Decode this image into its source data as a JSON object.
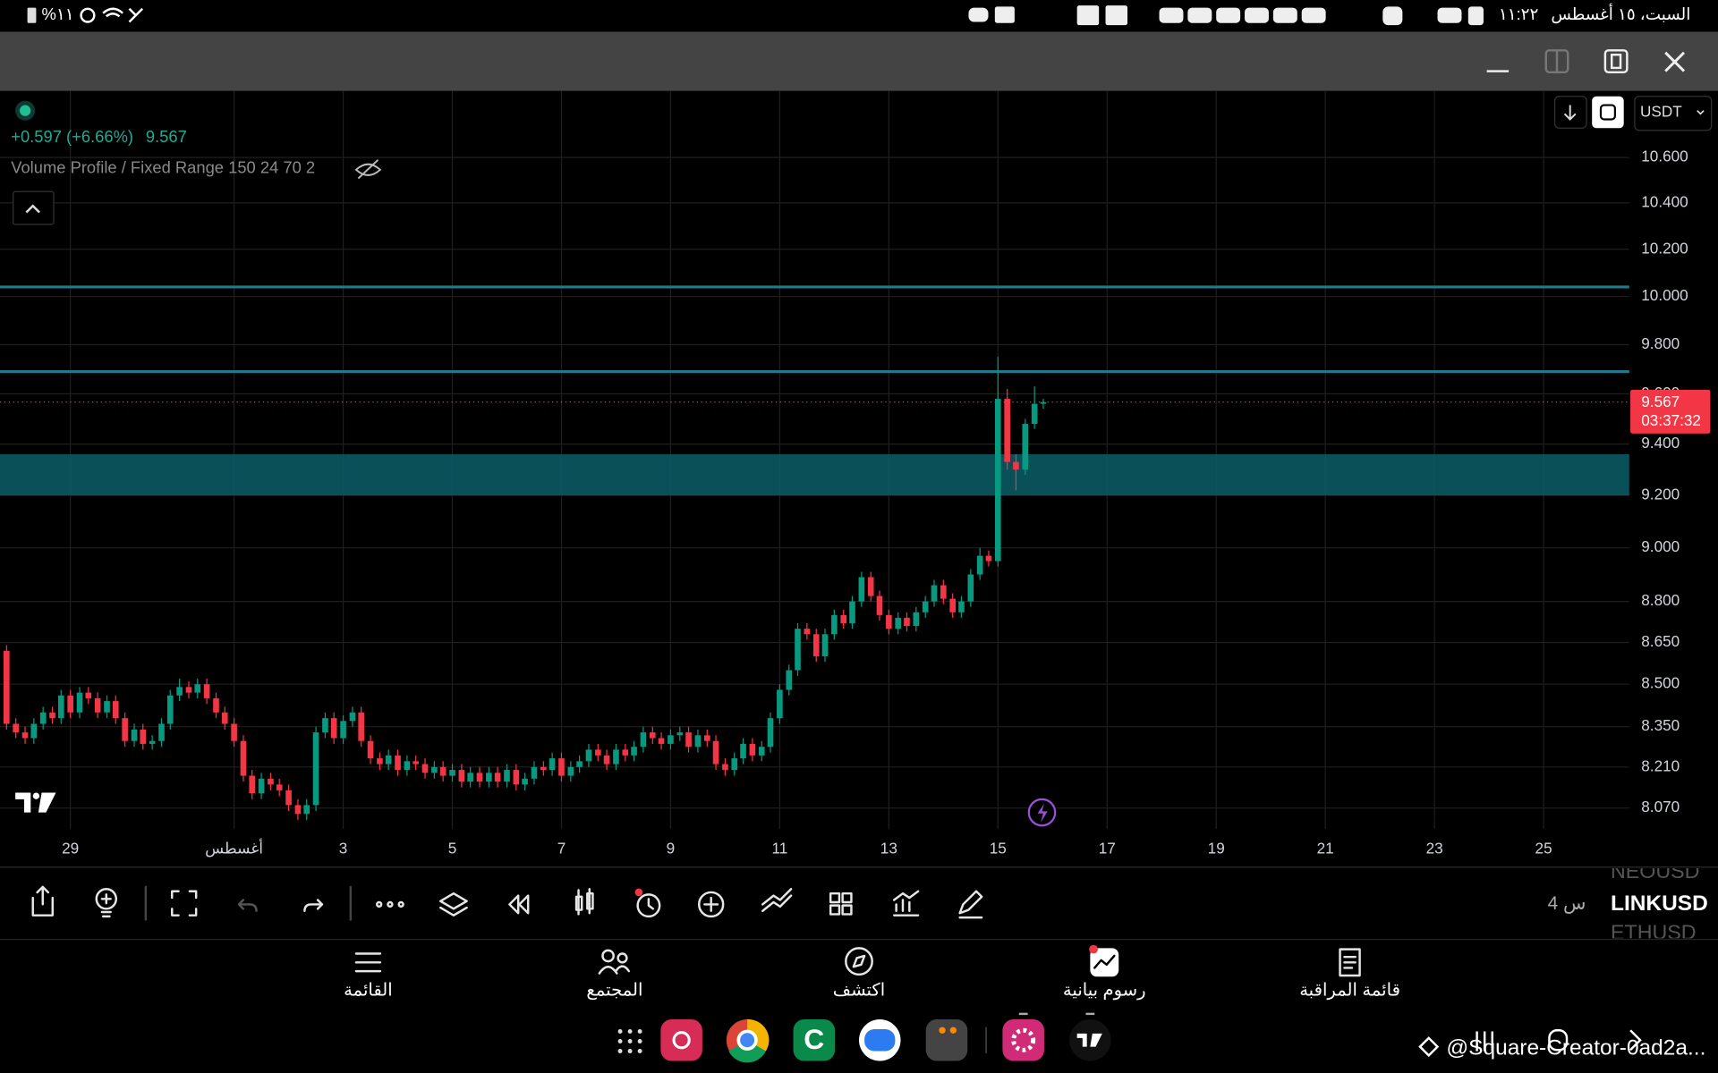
{
  "status_bar": {
    "battery": "%١١",
    "time": "١١:٢٢",
    "date": "السبت، ١٥ أغسطس"
  },
  "chart_data": {
    "type": "candlestick",
    "change": "+0.597 (+6.66%)",
    "last_price": 9.567,
    "indicator": "Volume Profile / Fixed Range 150 24 70 2",
    "currency": "USDT",
    "countdown": "03:37:32",
    "log_scale": true,
    "grid": true,
    "up_color": "#089981",
    "down_color": "#f23645",
    "level_color": "#1e7b8c",
    "zone_color": "#0b5e68",
    "levels": [
      10.04,
      9.69
    ],
    "zone": [
      9.36,
      9.2
    ],
    "xlim": [
      -3.29,
      26.57
    ],
    "ylim": [
      8.0,
      10.9
    ],
    "xticks": [
      {
        "value": -2,
        "label": "29"
      },
      {
        "value": 1,
        "label": "أغسطس"
      },
      3,
      5,
      7,
      9,
      11,
      13,
      15,
      17,
      19,
      21,
      23,
      25
    ],
    "yticks": [
      {
        "value": 10.6,
        "label": "10.600"
      },
      {
        "value": 10.4,
        "label": "10.400"
      },
      {
        "value": 10.2,
        "label": "10.200"
      },
      {
        "value": 10.0,
        "label": "10.000"
      },
      {
        "value": 9.8,
        "label": "9.800"
      },
      {
        "value": 9.6,
        "label": "9.600"
      },
      {
        "value": 9.4,
        "label": "9.400"
      },
      {
        "value": 9.2,
        "label": "9.200"
      },
      {
        "value": 9.0,
        "label": "9.000"
      },
      {
        "value": 8.8,
        "label": "8.800"
      },
      {
        "value": 8.65,
        "label": "8.650"
      },
      {
        "value": 8.5,
        "label": "8.500"
      },
      {
        "value": 8.35,
        "label": "8.350"
      },
      {
        "value": 8.21,
        "label": "8.210"
      },
      {
        "value": 8.07,
        "label": "8.070"
      }
    ],
    "candles": [
      [
        -3.17,
        8.62,
        8.64,
        8.34,
        8.36
      ],
      [
        -3,
        8.36,
        8.38,
        8.31,
        8.33
      ],
      [
        -2.83,
        8.33,
        8.35,
        8.29,
        8.31
      ],
      [
        -2.67,
        8.31,
        8.38,
        8.29,
        8.36
      ],
      [
        -2.5,
        8.36,
        8.42,
        8.34,
        8.4
      ],
      [
        -2.33,
        8.4,
        8.42,
        8.36,
        8.38
      ],
      [
        -2.17,
        8.38,
        8.48,
        8.36,
        8.46
      ],
      [
        -2,
        8.46,
        8.48,
        8.38,
        8.4
      ],
      [
        -1.83,
        8.4,
        8.49,
        8.38,
        8.47
      ],
      [
        -1.67,
        8.47,
        8.49,
        8.43,
        8.45
      ],
      [
        -1.5,
        8.45,
        8.47,
        8.38,
        8.4
      ],
      [
        -1.33,
        8.4,
        8.46,
        8.38,
        8.44
      ],
      [
        -1.17,
        8.44,
        8.46,
        8.36,
        8.38
      ],
      [
        -1,
        8.38,
        8.4,
        8.28,
        8.3
      ],
      [
        -0.83,
        8.3,
        8.36,
        8.28,
        8.34
      ],
      [
        -0.67,
        8.34,
        8.36,
        8.27,
        8.29
      ],
      [
        -0.5,
        8.29,
        8.32,
        8.27,
        8.3
      ],
      [
        -0.33,
        8.3,
        8.38,
        8.28,
        8.36
      ],
      [
        -0.17,
        8.36,
        8.48,
        8.34,
        8.46
      ],
      [
        0,
        8.46,
        8.52,
        8.44,
        8.49
      ],
      [
        0.17,
        8.49,
        8.51,
        8.45,
        8.47
      ],
      [
        0.33,
        8.47,
        8.52,
        8.45,
        8.5
      ],
      [
        0.5,
        8.5,
        8.52,
        8.43,
        8.45
      ],
      [
        0.67,
        8.45,
        8.47,
        8.38,
        8.4
      ],
      [
        0.83,
        8.4,
        8.42,
        8.34,
        8.36
      ],
      [
        1,
        8.36,
        8.38,
        8.28,
        8.3
      ],
      [
        1.17,
        8.3,
        8.32,
        8.16,
        8.18
      ],
      [
        1.33,
        8.18,
        8.2,
        8.1,
        8.12
      ],
      [
        1.5,
        8.12,
        8.19,
        8.1,
        8.17
      ],
      [
        1.67,
        8.17,
        8.19,
        8.13,
        8.15
      ],
      [
        1.83,
        8.15,
        8.17,
        8.11,
        8.13
      ],
      [
        2,
        8.13,
        8.15,
        8.06,
        8.08
      ],
      [
        2.17,
        8.08,
        8.1,
        8.03,
        8.05
      ],
      [
        2.33,
        8.05,
        8.1,
        8.03,
        8.08
      ],
      [
        2.5,
        8.08,
        8.35,
        8.06,
        8.33
      ],
      [
        2.67,
        8.33,
        8.4,
        8.31,
        8.38
      ],
      [
        2.83,
        8.38,
        8.4,
        8.29,
        8.31
      ],
      [
        3,
        8.31,
        8.39,
        8.29,
        8.37
      ],
      [
        3.17,
        8.37,
        8.42,
        8.35,
        8.4
      ],
      [
        3.33,
        8.4,
        8.42,
        8.28,
        8.3
      ],
      [
        3.5,
        8.3,
        8.32,
        8.22,
        8.24
      ],
      [
        3.67,
        8.24,
        8.26,
        8.2,
        8.22
      ],
      [
        3.83,
        8.22,
        8.27,
        8.2,
        8.25
      ],
      [
        4,
        8.25,
        8.27,
        8.18,
        8.2
      ],
      [
        4.17,
        8.2,
        8.25,
        8.18,
        8.23
      ],
      [
        4.33,
        8.23,
        8.25,
        8.2,
        8.22
      ],
      [
        4.5,
        8.22,
        8.24,
        8.17,
        8.19
      ],
      [
        4.67,
        8.19,
        8.23,
        8.17,
        8.21
      ],
      [
        4.83,
        8.21,
        8.23,
        8.16,
        8.18
      ],
      [
        5,
        8.18,
        8.22,
        8.16,
        8.2
      ],
      [
        5.17,
        8.2,
        8.22,
        8.14,
        8.16
      ],
      [
        5.33,
        8.16,
        8.21,
        8.14,
        8.19
      ],
      [
        5.5,
        8.19,
        8.21,
        8.14,
        8.16
      ],
      [
        5.67,
        8.16,
        8.21,
        8.14,
        8.19
      ],
      [
        5.83,
        8.19,
        8.21,
        8.14,
        8.16
      ],
      [
        6,
        8.16,
        8.22,
        8.14,
        8.2
      ],
      [
        6.17,
        8.2,
        8.22,
        8.13,
        8.15
      ],
      [
        6.33,
        8.15,
        8.19,
        8.13,
        8.17
      ],
      [
        6.5,
        8.17,
        8.23,
        8.15,
        8.21
      ],
      [
        6.67,
        8.21,
        8.23,
        8.18,
        8.2
      ],
      [
        6.83,
        8.2,
        8.26,
        8.18,
        8.24
      ],
      [
        7,
        8.24,
        8.26,
        8.16,
        8.18
      ],
      [
        7.17,
        8.18,
        8.23,
        8.16,
        8.21
      ],
      [
        7.33,
        8.21,
        8.25,
        8.19,
        8.23
      ],
      [
        7.5,
        8.23,
        8.29,
        8.21,
        8.27
      ],
      [
        7.67,
        8.27,
        8.29,
        8.23,
        8.25
      ],
      [
        7.83,
        8.25,
        8.27,
        8.2,
        8.22
      ],
      [
        8,
        8.22,
        8.29,
        8.2,
        8.27
      ],
      [
        8.17,
        8.27,
        8.29,
        8.23,
        8.25
      ],
      [
        8.33,
        8.25,
        8.3,
        8.23,
        8.28
      ],
      [
        8.5,
        8.28,
        8.35,
        8.26,
        8.33
      ],
      [
        8.67,
        8.33,
        8.35,
        8.29,
        8.31
      ],
      [
        8.83,
        8.31,
        8.33,
        8.27,
        8.29
      ],
      [
        9,
        8.29,
        8.34,
        8.27,
        8.32
      ],
      [
        9.17,
        8.32,
        8.35,
        8.3,
        8.33
      ],
      [
        9.33,
        8.33,
        8.35,
        8.26,
        8.28
      ],
      [
        9.5,
        8.28,
        8.34,
        8.26,
        8.32
      ],
      [
        9.67,
        8.32,
        8.34,
        8.28,
        8.3
      ],
      [
        9.83,
        8.3,
        8.32,
        8.2,
        8.22
      ],
      [
        10,
        8.22,
        8.24,
        8.18,
        8.2
      ],
      [
        10.17,
        8.2,
        8.26,
        8.18,
        8.24
      ],
      [
        10.33,
        8.24,
        8.31,
        8.22,
        8.29
      ],
      [
        10.5,
        8.29,
        8.31,
        8.23,
        8.25
      ],
      [
        10.67,
        8.25,
        8.3,
        8.23,
        8.28
      ],
      [
        10.83,
        8.28,
        8.4,
        8.26,
        8.38
      ],
      [
        11,
        8.38,
        8.5,
        8.36,
        8.48
      ],
      [
        11.17,
        8.48,
        8.57,
        8.46,
        8.55
      ],
      [
        11.33,
        8.55,
        8.72,
        8.53,
        8.7
      ],
      [
        11.5,
        8.7,
        8.72,
        8.66,
        8.68
      ],
      [
        11.67,
        8.68,
        8.7,
        8.58,
        8.6
      ],
      [
        11.83,
        8.6,
        8.7,
        8.58,
        8.68
      ],
      [
        12,
        8.68,
        8.77,
        8.66,
        8.75
      ],
      [
        12.17,
        8.75,
        8.77,
        8.7,
        8.72
      ],
      [
        12.33,
        8.72,
        8.82,
        8.7,
        8.8
      ],
      [
        12.5,
        8.8,
        8.91,
        8.78,
        8.89
      ],
      [
        12.67,
        8.89,
        8.91,
        8.8,
        8.82
      ],
      [
        12.83,
        8.82,
        8.84,
        8.73,
        8.75
      ],
      [
        13,
        8.75,
        8.77,
        8.68,
        8.7
      ],
      [
        13.17,
        8.7,
        8.76,
        8.68,
        8.74
      ],
      [
        13.33,
        8.74,
        8.76,
        8.69,
        8.71
      ],
      [
        13.5,
        8.71,
        8.78,
        8.69,
        8.76
      ],
      [
        13.67,
        8.76,
        8.82,
        8.74,
        8.8
      ],
      [
        13.83,
        8.8,
        8.88,
        8.78,
        8.86
      ],
      [
        14,
        8.86,
        8.88,
        8.79,
        8.81
      ],
      [
        14.17,
        8.81,
        8.83,
        8.74,
        8.76
      ],
      [
        14.33,
        8.76,
        8.82,
        8.74,
        8.8
      ],
      [
        14.5,
        8.8,
        8.92,
        8.78,
        8.9
      ],
      [
        14.67,
        8.9,
        9.0,
        8.88,
        8.97
      ],
      [
        14.83,
        8.97,
        8.99,
        8.93,
        8.95
      ],
      [
        15,
        8.95,
        9.75,
        8.93,
        9.58
      ],
      [
        15.17,
        9.58,
        9.62,
        9.3,
        9.33
      ],
      [
        15.33,
        9.33,
        9.36,
        9.22,
        9.3
      ],
      [
        15.5,
        9.3,
        9.5,
        9.28,
        9.48
      ],
      [
        15.67,
        9.48,
        9.63,
        9.46,
        9.56
      ],
      [
        15.83,
        9.56,
        9.58,
        9.54,
        9.567
      ]
    ]
  },
  "toolbar": {
    "interval": "4 س",
    "symbols": [
      "NEOUSD",
      "LINKUSD",
      "ETHUSD"
    ]
  },
  "bottom_nav": [
    "القائمة",
    "المجتمع",
    "اكتشف",
    "رسوم بيانية",
    "قائمة المراقبة"
  ],
  "watermark": "@Square-Creator-0ad2a..."
}
